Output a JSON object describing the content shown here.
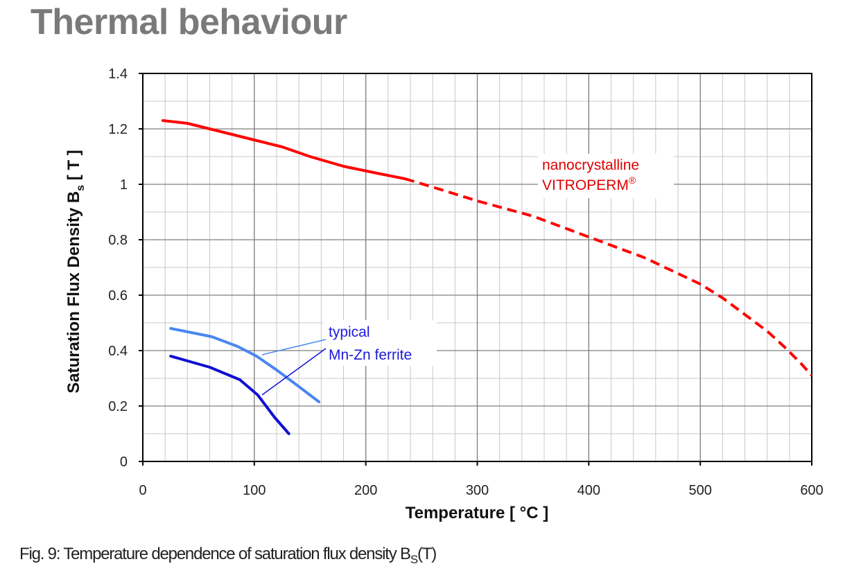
{
  "page_title": "Thermal behaviour",
  "caption": {
    "prefix": "Fig. 9: Temperature dependence of saturation flux density  B",
    "sub": "S",
    "suffix": "(T)"
  },
  "chart_data": {
    "type": "line",
    "xlabel": "Temperature  [ °C ]",
    "ylabel_main": "Saturation Flux Density   B",
    "ylabel_sub": "s",
    "ylabel_unit": "  [ T ]",
    "xlim": [
      0,
      600
    ],
    "ylim": [
      0,
      1.4
    ],
    "x_ticks": [
      0,
      100,
      200,
      300,
      400,
      500,
      600
    ],
    "y_ticks": [
      {
        "value": 0,
        "label": "0"
      },
      {
        "value": 0.2,
        "label": "0.2"
      },
      {
        "value": 0.4,
        "label": "0.4"
      },
      {
        "value": 0.6,
        "label": "0.6"
      },
      {
        "value": 0.8,
        "label": "0.8"
      },
      {
        "value": 1.0,
        "label": "1"
      },
      {
        "value": 1.2,
        "label": "1.2"
      },
      {
        "value": 1.4,
        "label": "1.4"
      }
    ],
    "grid": true,
    "minor_grid_x_step": 20,
    "minor_grid_y_step": 0.1,
    "series": [
      {
        "color": "#ff0000",
        "solid_until_x": 235,
        "x": [
          18,
          40,
          60,
          80,
          100,
          125,
          150,
          180,
          210,
          235,
          260,
          300,
          350,
          400,
          450,
          500,
          520,
          540,
          560,
          575,
          590,
          600
        ],
        "y": [
          1.23,
          1.22,
          1.2,
          1.18,
          1.16,
          1.135,
          1.1,
          1.065,
          1.04,
          1.02,
          0.99,
          0.94,
          0.885,
          0.81,
          0.735,
          0.64,
          0.59,
          0.53,
          0.47,
          0.415,
          0.355,
          0.31
        ]
      },
      {
        "color": "#4a86f0",
        "x": [
          25,
          62,
          85,
          102,
          120,
          140,
          158
        ],
        "y": [
          0.48,
          0.45,
          0.415,
          0.38,
          0.33,
          0.27,
          0.215
        ]
      },
      {
        "color": "#0f0fd2",
        "x": [
          25,
          60,
          87,
          103,
          118,
          131
        ],
        "y": [
          0.38,
          0.34,
          0.295,
          0.24,
          0.16,
          0.1
        ]
      }
    ],
    "annotations": [
      {
        "line1": "nanocrystalline",
        "line2": "VITROPERM",
        "sup": "®",
        "color": "#e00000"
      },
      {
        "line1": "typical",
        "line2": "Mn-Zn ferrite",
        "color": "#1a1adc"
      }
    ]
  }
}
